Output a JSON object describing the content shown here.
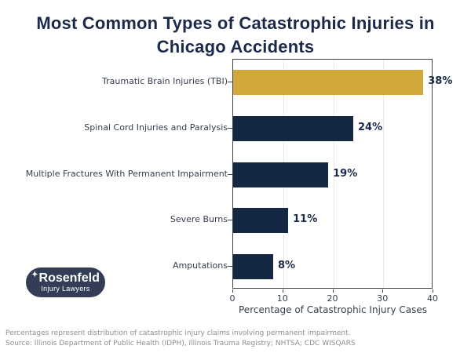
{
  "title": {
    "text": "Most Common Types of Catastrophic Injuries in Chicago Accidents",
    "lines": [
      "Most Common Types of Catastrophic Injuries in",
      "Chicago Accidents"
    ]
  },
  "chart_data": {
    "type": "bar",
    "orientation": "horizontal",
    "categories": [
      "Traumatic Brain Injuries (TBI)",
      "Spinal Cord Injuries and Paralysis",
      "Multiple Fractures With Permanent Impairment",
      "Severe Burns",
      "Amputations"
    ],
    "values": [
      38,
      24,
      19,
      11,
      8
    ],
    "value_labels": [
      "38%",
      "24%",
      "19%",
      "11%",
      "8%"
    ],
    "bar_colors": [
      "#d1a93a",
      "#152843",
      "#152843",
      "#152843",
      "#152843"
    ],
    "title": "Most Common Types of Catastrophic Injuries in Chicago Accidents",
    "xlabel": "Percentage of Catastrophic Injury Cases",
    "ylabel": "",
    "xlim": [
      0,
      40
    ],
    "xticks": [
      0,
      10,
      20,
      30,
      40
    ],
    "grid": "vertical",
    "legend": "none"
  },
  "colors": {
    "accent_gold": "#d1a93a",
    "accent_navy": "#152843",
    "title_navy": "#1b2a4a",
    "label_gray": "#343f4d",
    "footer_gray": "#8e8e8e",
    "logo_bg": "#333e56"
  },
  "logo": {
    "star": "✦",
    "name": "Rosenfeld",
    "tagline": "Injury Lawyers"
  },
  "footer": {
    "note": "Percentages represent distribution of catastrophic injury claims involving permanent impairment.",
    "source": "Source: Illinois Department of Public Health (IDPH), Illinois Trauma Registry; NHTSA; CDC WISQARS"
  }
}
